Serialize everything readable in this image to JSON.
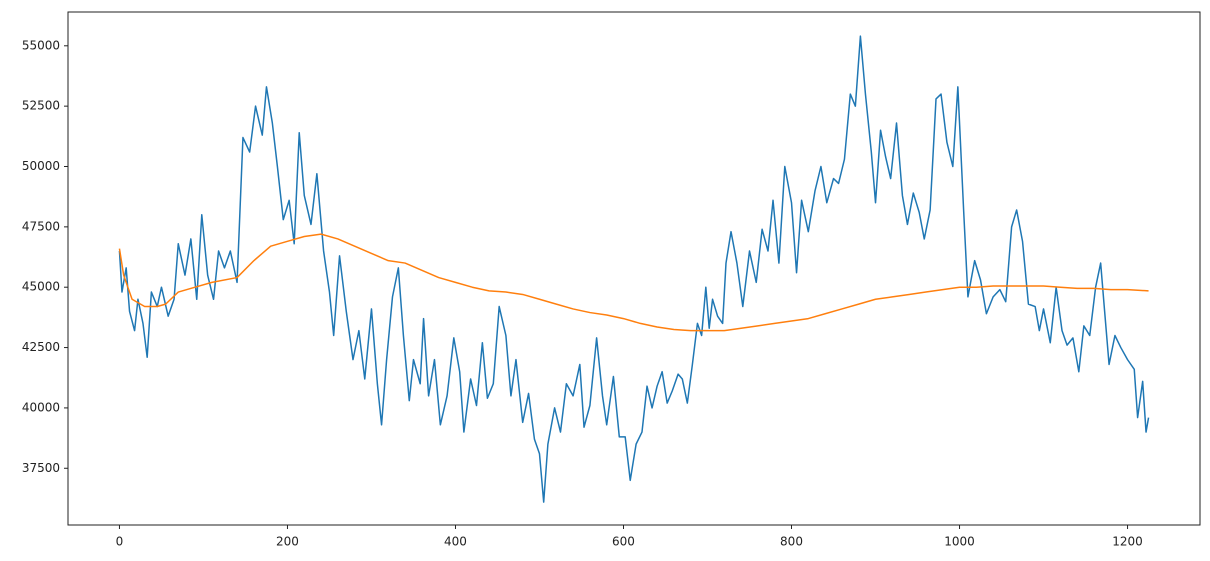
{
  "chart_data": {
    "type": "line",
    "xlim": [
      -61.25,
      1286.25
    ],
    "xticks": [
      0,
      200,
      400,
      600,
      800,
      1000,
      1200
    ],
    "ylim": [
      35150,
      56400
    ],
    "yticks": [
      37500,
      40000,
      42500,
      45000,
      47500,
      50000,
      52500,
      55000
    ],
    "grid": false,
    "series": [
      {
        "color": "#1f77b4",
        "x": [
          0,
          3,
          8,
          12,
          18,
          22,
          28,
          33,
          38,
          45,
          50,
          58,
          65,
          70,
          78,
          85,
          92,
          98,
          105,
          112,
          118,
          125,
          132,
          140,
          147,
          155,
          162,
          170,
          175,
          182,
          188,
          195,
          202,
          208,
          214,
          220,
          228,
          235,
          243,
          250,
          255,
          262,
          270,
          278,
          285,
          292,
          300,
          307,
          312,
          318,
          325,
          332,
          338,
          345,
          350,
          358,
          362,
          368,
          375,
          382,
          390,
          398,
          405,
          410,
          418,
          425,
          432,
          438,
          445,
          452,
          460,
          466,
          472,
          480,
          487,
          494,
          500,
          505,
          510,
          518,
          525,
          532,
          540,
          548,
          553,
          560,
          568,
          575,
          580,
          588,
          595,
          602,
          608,
          615,
          622,
          628,
          634,
          640,
          646,
          652,
          658,
          665,
          670,
          676,
          682,
          688,
          693,
          698,
          702,
          706,
          712,
          718,
          722,
          728,
          735,
          742,
          750,
          758,
          765,
          772,
          778,
          785,
          792,
          800,
          806,
          812,
          820,
          828,
          835,
          842,
          850,
          856,
          863,
          870,
          876,
          882,
          888,
          895,
          900,
          906,
          912,
          918,
          925,
          932,
          938,
          945,
          952,
          958,
          965,
          972,
          978,
          985,
          992,
          998,
          1005,
          1010,
          1018,
          1025,
          1032,
          1040,
          1048,
          1055,
          1062,
          1068,
          1075,
          1082,
          1090,
          1095,
          1100,
          1108,
          1115,
          1122,
          1128,
          1135,
          1142,
          1148,
          1155,
          1162,
          1168,
          1172,
          1178,
          1185,
          1192,
          1200,
          1208,
          1212,
          1218,
          1222,
          1225
        ],
        "values": [
          46500,
          44800,
          45800,
          44000,
          43200,
          44500,
          43500,
          42100,
          44800,
          44200,
          45000,
          43800,
          44500,
          46800,
          45500,
          47000,
          44500,
          48000,
          45500,
          44500,
          46500,
          45800,
          46500,
          45200,
          51200,
          50600,
          52500,
          51300,
          53300,
          51800,
          50000,
          47800,
          48600,
          46800,
          51400,
          48800,
          47600,
          49700,
          46500,
          44800,
          43000,
          46300,
          44000,
          42000,
          43200,
          41200,
          44100,
          41000,
          39300,
          42000,
          44600,
          45800,
          43000,
          40300,
          42000,
          41000,
          43700,
          40500,
          42000,
          39300,
          40500,
          42900,
          41500,
          39000,
          41200,
          40100,
          42700,
          40400,
          41000,
          44200,
          43000,
          40500,
          42000,
          39400,
          40600,
          38700,
          38100,
          36100,
          38500,
          40000,
          39000,
          41000,
          40500,
          41800,
          39200,
          40100,
          42900,
          40500,
          39300,
          41300,
          38800,
          38800,
          37000,
          38500,
          39000,
          40900,
          40000,
          40900,
          41500,
          40200,
          40700,
          41400,
          41200,
          40200,
          41800,
          43500,
          43000,
          45000,
          43300,
          44500,
          43800,
          43500,
          46000,
          47300,
          46000,
          44200,
          46500,
          45200,
          47400,
          46500,
          48600,
          46000,
          50000,
          48500,
          45600,
          48600,
          47300,
          49000,
          50000,
          48500,
          49500,
          49300,
          50300,
          53000,
          52500,
          55400,
          53000,
          50600,
          48500,
          51500,
          50400,
          49500,
          51800,
          48800,
          47600,
          48900,
          48100,
          47000,
          48200,
          52800,
          53000,
          51000,
          50000,
          53300,
          48100,
          44600,
          46100,
          45300,
          43900,
          44600,
          44900,
          44400,
          47500,
          48200,
          46900,
          44300,
          44200,
          43200,
          44100,
          42700,
          45000,
          43200,
          42600,
          42900,
          41500,
          43400,
          43000,
          45000,
          46000,
          44300,
          41800,
          43000,
          42500,
          42000,
          41600,
          39600,
          41100,
          39000,
          39600
        ]
      },
      {
        "color": "#ff7f0e",
        "x": [
          0,
          5,
          15,
          30,
          45,
          55,
          70,
          90,
          110,
          140,
          160,
          180,
          200,
          220,
          240,
          260,
          280,
          300,
          320,
          340,
          360,
          380,
          400,
          420,
          440,
          460,
          480,
          500,
          520,
          540,
          560,
          580,
          600,
          620,
          640,
          660,
          680,
          700,
          720,
          740,
          760,
          780,
          800,
          820,
          840,
          860,
          880,
          900,
          920,
          940,
          960,
          980,
          1000,
          1020,
          1040,
          1060,
          1080,
          1100,
          1120,
          1140,
          1160,
          1180,
          1200,
          1225
        ],
        "values": [
          46600,
          45500,
          44500,
          44200,
          44200,
          44300,
          44800,
          45000,
          45200,
          45400,
          46100,
          46700,
          46900,
          47100,
          47200,
          47000,
          46700,
          46400,
          46100,
          46000,
          45700,
          45400,
          45200,
          45000,
          44850,
          44800,
          44700,
          44500,
          44300,
          44100,
          43950,
          43850,
          43700,
          43500,
          43350,
          43250,
          43200,
          43200,
          43200,
          43300,
          43400,
          43500,
          43600,
          43700,
          43900,
          44100,
          44300,
          44500,
          44600,
          44700,
          44800,
          44900,
          45000,
          45000,
          45050,
          45050,
          45050,
          45050,
          45000,
          44950,
          44950,
          44900,
          44900,
          44850
        ]
      }
    ]
  }
}
